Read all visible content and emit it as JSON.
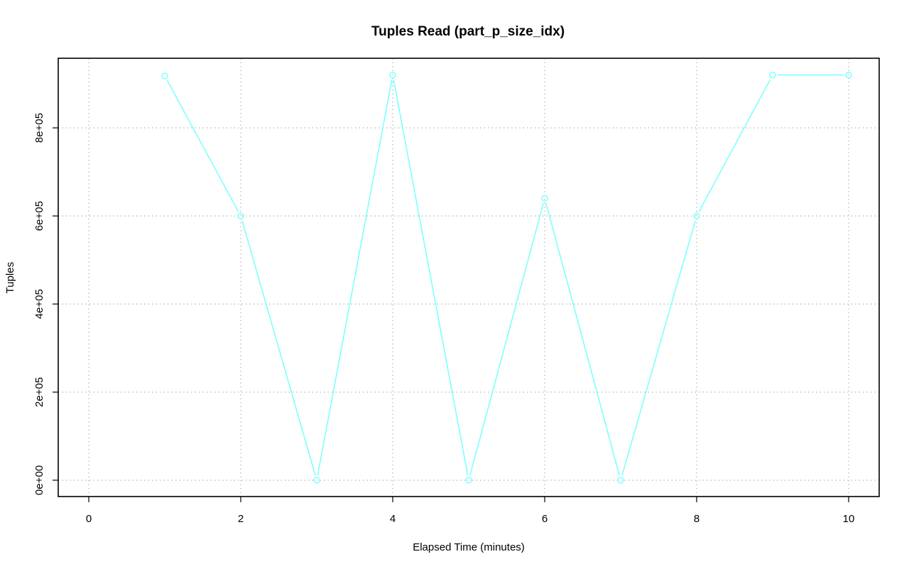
{
  "chart_data": {
    "type": "line",
    "title": "Tuples Read (part_p_size_idx)",
    "xlabel": "Elapsed Time (minutes)",
    "ylabel": "Tuples",
    "xlim": [
      0,
      10
    ],
    "ylim": [
      0,
      920000
    ],
    "x_ticks": [
      0,
      2,
      4,
      6,
      8,
      10
    ],
    "x_tick_labels": [
      "0",
      "2",
      "4",
      "6",
      "8",
      "10"
    ],
    "y_ticks": [
      0,
      200000,
      400000,
      600000,
      800000
    ],
    "y_tick_labels": [
      "0e+00",
      "2e+05",
      "4e+05",
      "6e+05",
      "8e+05"
    ],
    "grid": true,
    "series": [
      {
        "color": "#7fffff",
        "x": [
          1,
          2,
          3,
          4,
          5,
          6,
          7,
          8,
          9,
          10
        ],
        "y": [
          918000,
          600000,
          0,
          920000,
          0,
          640000,
          0,
          600000,
          920000,
          920000
        ]
      }
    ]
  }
}
